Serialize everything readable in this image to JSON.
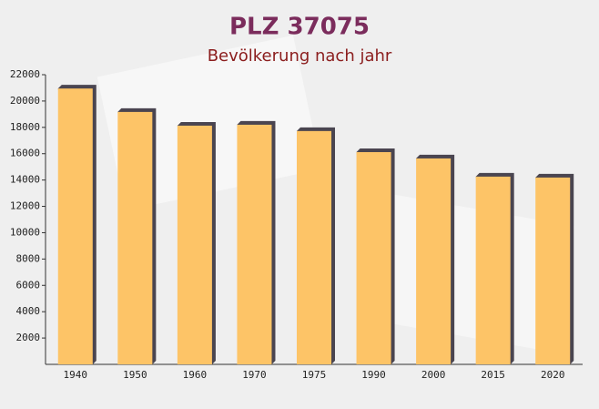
{
  "chart_data": {
    "type": "bar",
    "title": "PLZ 37075",
    "subtitle": "Bevölkerung nach jahr",
    "categories": [
      "1940",
      "1950",
      "1960",
      "1970",
      "1975",
      "1990",
      "2000",
      "2015",
      "2020"
    ],
    "values": [
      20950,
      19170,
      18130,
      18200,
      17720,
      16120,
      15640,
      14260,
      14190
    ],
    "color": "#fdc467",
    "ylim": [
      0,
      22000
    ],
    "yticks": [
      2000,
      4000,
      6000,
      8000,
      10000,
      12000,
      14000,
      16000,
      18000,
      20000,
      22000
    ],
    "grid": false
  }
}
